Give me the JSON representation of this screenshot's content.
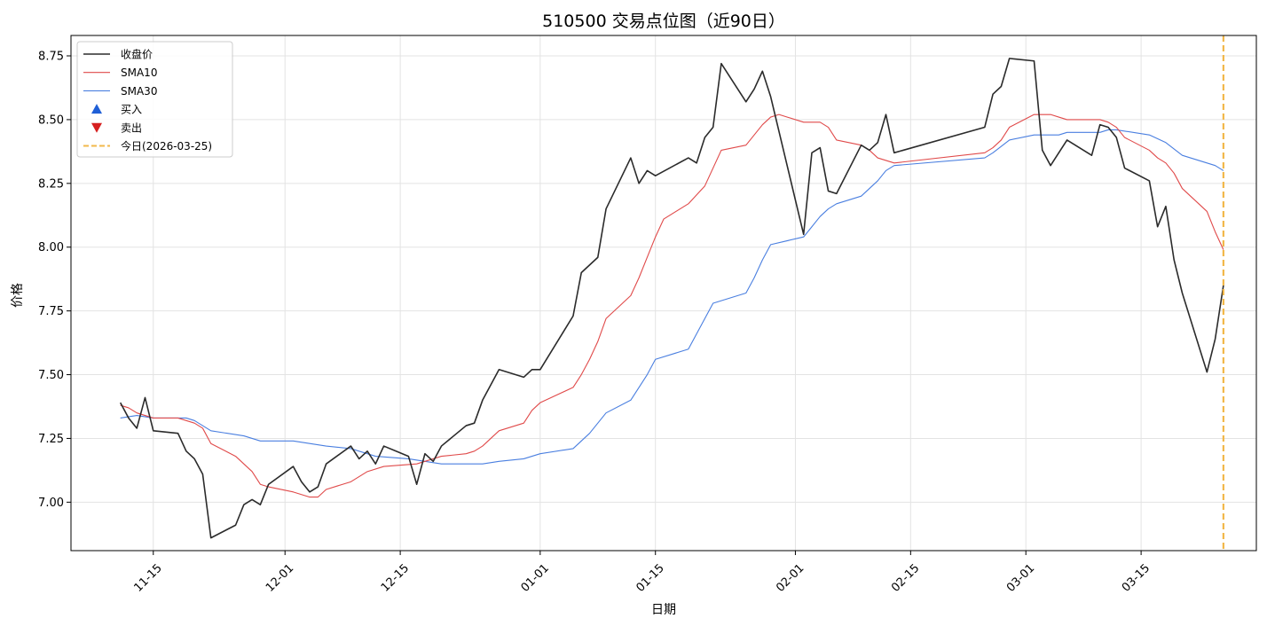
{
  "chart_data": {
    "type": "line",
    "title": "510500 交易点位图（近90日）",
    "xlabel": "日期",
    "ylabel": "价格",
    "ylim": [
      6.81,
      8.83
    ],
    "xlim": [
      "2025-11-05",
      "2026-03-29"
    ],
    "x_ticks": [
      "2025-11-15",
      "2025-12-01",
      "2025-12-15",
      "2026-01-01",
      "2026-01-15",
      "2026-02-01",
      "2026-02-15",
      "2026-03-01",
      "2026-03-15"
    ],
    "x_tick_labels": [
      "11-15",
      "12-01",
      "12-15",
      "01-01",
      "01-15",
      "02-01",
      "02-15",
      "03-01",
      "03-15"
    ],
    "y_ticks": [
      7.0,
      7.25,
      7.5,
      7.75,
      8.0,
      8.25,
      8.5,
      8.75
    ],
    "y_tick_labels": [
      "7.00",
      "7.25",
      "7.50",
      "7.75",
      "8.00",
      "8.25",
      "8.50",
      "8.75"
    ],
    "grid": true,
    "legend_position": "top-left",
    "today_line": {
      "date": "2026-03-25",
      "label": "今日(2026-03-25)",
      "color": "#f2b84b"
    },
    "legend": [
      {
        "label": "收盘价",
        "kind": "line",
        "color": "#2b2b2b"
      },
      {
        "label": "SMA10",
        "kind": "line",
        "color": "#e04a4a"
      },
      {
        "label": "SMA30",
        "kind": "line",
        "color": "#4a7fe0"
      },
      {
        "label": "买入",
        "kind": "marker-up",
        "color": "#1f5fd6"
      },
      {
        "label": "卖出",
        "kind": "marker-down",
        "color": "#d62020"
      },
      {
        "label": "今日(2026-03-25)",
        "kind": "dashed",
        "color": "#f2b84b"
      }
    ],
    "series": [
      {
        "name": "收盘价",
        "color": "#2b2b2b",
        "points": [
          [
            "2025-11-11",
            7.39
          ],
          [
            "2025-11-12",
            7.33
          ],
          [
            "2025-11-13",
            7.29
          ],
          [
            "2025-11-14",
            7.41
          ],
          [
            "2025-11-15",
            7.28
          ],
          [
            "2025-11-18",
            7.27
          ],
          [
            "2025-11-19",
            7.2
          ],
          [
            "2025-11-20",
            7.17
          ],
          [
            "2025-11-21",
            7.11
          ],
          [
            "2025-11-22",
            6.86
          ],
          [
            "2025-11-25",
            6.91
          ],
          [
            "2025-11-26",
            6.99
          ],
          [
            "2025-11-27",
            7.01
          ],
          [
            "2025-11-28",
            6.99
          ],
          [
            "2025-11-29",
            7.07
          ],
          [
            "2025-12-02",
            7.14
          ],
          [
            "2025-12-03",
            7.08
          ],
          [
            "2025-12-04",
            7.04
          ],
          [
            "2025-12-05",
            7.06
          ],
          [
            "2025-12-06",
            7.15
          ],
          [
            "2025-12-09",
            7.22
          ],
          [
            "2025-12-10",
            7.17
          ],
          [
            "2025-12-11",
            7.2
          ],
          [
            "2025-12-12",
            7.15
          ],
          [
            "2025-12-13",
            7.22
          ],
          [
            "2025-12-16",
            7.18
          ],
          [
            "2025-12-17",
            7.07
          ],
          [
            "2025-12-18",
            7.19
          ],
          [
            "2025-12-19",
            7.16
          ],
          [
            "2025-12-20",
            7.22
          ],
          [
            "2025-12-23",
            7.3
          ],
          [
            "2025-12-24",
            7.31
          ],
          [
            "2025-12-25",
            7.4
          ],
          [
            "2025-12-26",
            7.46
          ],
          [
            "2025-12-27",
            7.52
          ],
          [
            "2025-12-30",
            7.49
          ],
          [
            "2025-12-31",
            7.52
          ],
          [
            "2026-01-01",
            7.52
          ],
          [
            "2026-01-05",
            7.73
          ],
          [
            "2026-01-06",
            7.9
          ],
          [
            "2026-01-07",
            7.93
          ],
          [
            "2026-01-08",
            7.96
          ],
          [
            "2026-01-09",
            8.15
          ],
          [
            "2026-01-12",
            8.35
          ],
          [
            "2026-01-13",
            8.25
          ],
          [
            "2026-01-14",
            8.3
          ],
          [
            "2026-01-15",
            8.28
          ],
          [
            "2026-01-19",
            8.35
          ],
          [
            "2026-01-20",
            8.33
          ],
          [
            "2026-01-21",
            8.43
          ],
          [
            "2026-01-22",
            8.47
          ],
          [
            "2026-01-23",
            8.72
          ],
          [
            "2026-01-26",
            8.57
          ],
          [
            "2026-01-27",
            8.62
          ],
          [
            "2026-01-28",
            8.69
          ],
          [
            "2026-01-29",
            8.59
          ],
          [
            "2026-02-02",
            8.05
          ],
          [
            "2026-02-03",
            8.37
          ],
          [
            "2026-02-04",
            8.39
          ],
          [
            "2026-02-05",
            8.22
          ],
          [
            "2026-02-06",
            8.21
          ],
          [
            "2026-02-09",
            8.4
          ],
          [
            "2026-02-10",
            8.38
          ],
          [
            "2026-02-11",
            8.41
          ],
          [
            "2026-02-12",
            8.52
          ],
          [
            "2026-02-13",
            8.37
          ],
          [
            "2026-02-24",
            8.47
          ],
          [
            "2026-02-25",
            8.6
          ],
          [
            "2026-02-26",
            8.63
          ],
          [
            "2026-02-27",
            8.74
          ],
          [
            "2026-03-02",
            8.73
          ],
          [
            "2026-03-03",
            8.38
          ],
          [
            "2026-03-04",
            8.32
          ],
          [
            "2026-03-05",
            8.37
          ],
          [
            "2026-03-06",
            8.42
          ],
          [
            "2026-03-09",
            8.36
          ],
          [
            "2026-03-10",
            8.48
          ],
          [
            "2026-03-11",
            8.47
          ],
          [
            "2026-03-12",
            8.43
          ],
          [
            "2026-03-13",
            8.31
          ],
          [
            "2026-03-16",
            8.26
          ],
          [
            "2026-03-17",
            8.08
          ],
          [
            "2026-03-18",
            8.16
          ],
          [
            "2026-03-19",
            7.95
          ],
          [
            "2026-03-20",
            7.82
          ],
          [
            "2026-03-23",
            7.51
          ],
          [
            "2026-03-24",
            7.64
          ],
          [
            "2026-03-25",
            7.85
          ]
        ]
      },
      {
        "name": "SMA10",
        "color": "#e04a4a",
        "points": [
          [
            "2025-11-11",
            7.38
          ],
          [
            "2025-11-12",
            7.37
          ],
          [
            "2025-11-13",
            7.35
          ],
          [
            "2025-11-14",
            7.34
          ],
          [
            "2025-11-15",
            7.33
          ],
          [
            "2025-11-18",
            7.33
          ],
          [
            "2025-11-19",
            7.32
          ],
          [
            "2025-11-20",
            7.31
          ],
          [
            "2025-11-21",
            7.29
          ],
          [
            "2025-11-22",
            7.23
          ],
          [
            "2025-11-25",
            7.18
          ],
          [
            "2025-11-27",
            7.12
          ],
          [
            "2025-11-28",
            7.07
          ],
          [
            "2025-11-29",
            7.06
          ],
          [
            "2025-12-02",
            7.04
          ],
          [
            "2025-12-04",
            7.02
          ],
          [
            "2025-12-05",
            7.02
          ],
          [
            "2025-12-06",
            7.05
          ],
          [
            "2025-12-09",
            7.08
          ],
          [
            "2025-12-11",
            7.12
          ],
          [
            "2025-12-13",
            7.14
          ],
          [
            "2025-12-17",
            7.15
          ],
          [
            "2025-12-20",
            7.18
          ],
          [
            "2025-12-23",
            7.19
          ],
          [
            "2025-12-24",
            7.2
          ],
          [
            "2025-12-25",
            7.22
          ],
          [
            "2025-12-27",
            7.28
          ],
          [
            "2025-12-30",
            7.31
          ],
          [
            "2025-12-31",
            7.36
          ],
          [
            "2026-01-01",
            7.39
          ],
          [
            "2026-01-05",
            7.45
          ],
          [
            "2026-01-06",
            7.5
          ],
          [
            "2026-01-07",
            7.56
          ],
          [
            "2026-01-08",
            7.63
          ],
          [
            "2026-01-09",
            7.72
          ],
          [
            "2026-01-12",
            7.81
          ],
          [
            "2026-01-13",
            7.88
          ],
          [
            "2026-01-14",
            7.96
          ],
          [
            "2026-01-15",
            8.04
          ],
          [
            "2026-01-16",
            8.11
          ],
          [
            "2026-01-19",
            8.17
          ],
          [
            "2026-01-21",
            8.24
          ],
          [
            "2026-01-23",
            8.38
          ],
          [
            "2026-01-26",
            8.4
          ],
          [
            "2026-01-27",
            8.44
          ],
          [
            "2026-01-28",
            8.48
          ],
          [
            "2026-01-29",
            8.51
          ],
          [
            "2026-01-30",
            8.52
          ],
          [
            "2026-02-02",
            8.49
          ],
          [
            "2026-02-03",
            8.49
          ],
          [
            "2026-02-04",
            8.49
          ],
          [
            "2026-02-05",
            8.47
          ],
          [
            "2026-02-06",
            8.42
          ],
          [
            "2026-02-09",
            8.4
          ],
          [
            "2026-02-10",
            8.38
          ],
          [
            "2026-02-11",
            8.35
          ],
          [
            "2026-02-12",
            8.34
          ],
          [
            "2026-02-13",
            8.33
          ],
          [
            "2026-02-24",
            8.37
          ],
          [
            "2026-02-25",
            8.39
          ],
          [
            "2026-02-26",
            8.42
          ],
          [
            "2026-02-27",
            8.47
          ],
          [
            "2026-03-02",
            8.52
          ],
          [
            "2026-03-03",
            8.52
          ],
          [
            "2026-03-04",
            8.52
          ],
          [
            "2026-03-05",
            8.51
          ],
          [
            "2026-03-06",
            8.5
          ],
          [
            "2026-03-09",
            8.5
          ],
          [
            "2026-03-10",
            8.5
          ],
          [
            "2026-03-11",
            8.49
          ],
          [
            "2026-03-12",
            8.47
          ],
          [
            "2026-03-13",
            8.43
          ],
          [
            "2026-03-16",
            8.38
          ],
          [
            "2026-03-17",
            8.35
          ],
          [
            "2026-03-18",
            8.33
          ],
          [
            "2026-03-19",
            8.29
          ],
          [
            "2026-03-20",
            8.23
          ],
          [
            "2026-03-23",
            8.14
          ],
          [
            "2026-03-24",
            8.06
          ],
          [
            "2026-03-25",
            7.99
          ]
        ]
      },
      {
        "name": "SMA30",
        "color": "#4a7fe0",
        "points": [
          [
            "2025-11-11",
            7.33
          ],
          [
            "2025-11-13",
            7.34
          ],
          [
            "2025-11-15",
            7.33
          ],
          [
            "2025-11-19",
            7.33
          ],
          [
            "2025-11-20",
            7.32
          ],
          [
            "2025-11-22",
            7.28
          ],
          [
            "2025-11-26",
            7.26
          ],
          [
            "2025-11-28",
            7.24
          ],
          [
            "2025-12-02",
            7.24
          ],
          [
            "2025-12-04",
            7.23
          ],
          [
            "2025-12-06",
            7.22
          ],
          [
            "2025-12-09",
            7.21
          ],
          [
            "2025-12-11",
            7.19
          ],
          [
            "2025-12-12",
            7.18
          ],
          [
            "2025-12-16",
            7.17
          ],
          [
            "2025-12-18",
            7.16
          ],
          [
            "2025-12-20",
            7.15
          ],
          [
            "2025-12-23",
            7.15
          ],
          [
            "2025-12-25",
            7.15
          ],
          [
            "2025-12-27",
            7.16
          ],
          [
            "2025-12-30",
            7.17
          ],
          [
            "2026-01-01",
            7.19
          ],
          [
            "2026-01-05",
            7.21
          ],
          [
            "2026-01-06",
            7.24
          ],
          [
            "2026-01-07",
            7.27
          ],
          [
            "2026-01-08",
            7.31
          ],
          [
            "2026-01-09",
            7.35
          ],
          [
            "2026-01-12",
            7.4
          ],
          [
            "2026-01-13",
            7.45
          ],
          [
            "2026-01-14",
            7.5
          ],
          [
            "2026-01-15",
            7.56
          ],
          [
            "2026-01-19",
            7.6
          ],
          [
            "2026-01-20",
            7.66
          ],
          [
            "2026-01-21",
            7.72
          ],
          [
            "2026-01-22",
            7.78
          ],
          [
            "2026-01-26",
            7.82
          ],
          [
            "2026-01-27",
            7.88
          ],
          [
            "2026-01-28",
            7.95
          ],
          [
            "2026-01-29",
            8.01
          ],
          [
            "2026-02-02",
            8.04
          ],
          [
            "2026-02-03",
            8.08
          ],
          [
            "2026-02-04",
            8.12
          ],
          [
            "2026-02-05",
            8.15
          ],
          [
            "2026-02-06",
            8.17
          ],
          [
            "2026-02-09",
            8.2
          ],
          [
            "2026-02-10",
            8.23
          ],
          [
            "2026-02-11",
            8.26
          ],
          [
            "2026-02-12",
            8.3
          ],
          [
            "2026-02-13",
            8.32
          ],
          [
            "2026-02-24",
            8.35
          ],
          [
            "2026-02-25",
            8.37
          ],
          [
            "2026-02-27",
            8.42
          ],
          [
            "2026-03-02",
            8.44
          ],
          [
            "2026-03-05",
            8.44
          ],
          [
            "2026-03-06",
            8.45
          ],
          [
            "2026-03-10",
            8.45
          ],
          [
            "2026-03-11",
            8.46
          ],
          [
            "2026-03-12",
            8.46
          ],
          [
            "2026-03-16",
            8.44
          ],
          [
            "2026-03-18",
            8.41
          ],
          [
            "2026-03-20",
            8.36
          ],
          [
            "2026-03-23",
            8.33
          ],
          [
            "2026-03-24",
            8.32
          ],
          [
            "2026-03-25",
            8.3
          ]
        ]
      }
    ]
  }
}
